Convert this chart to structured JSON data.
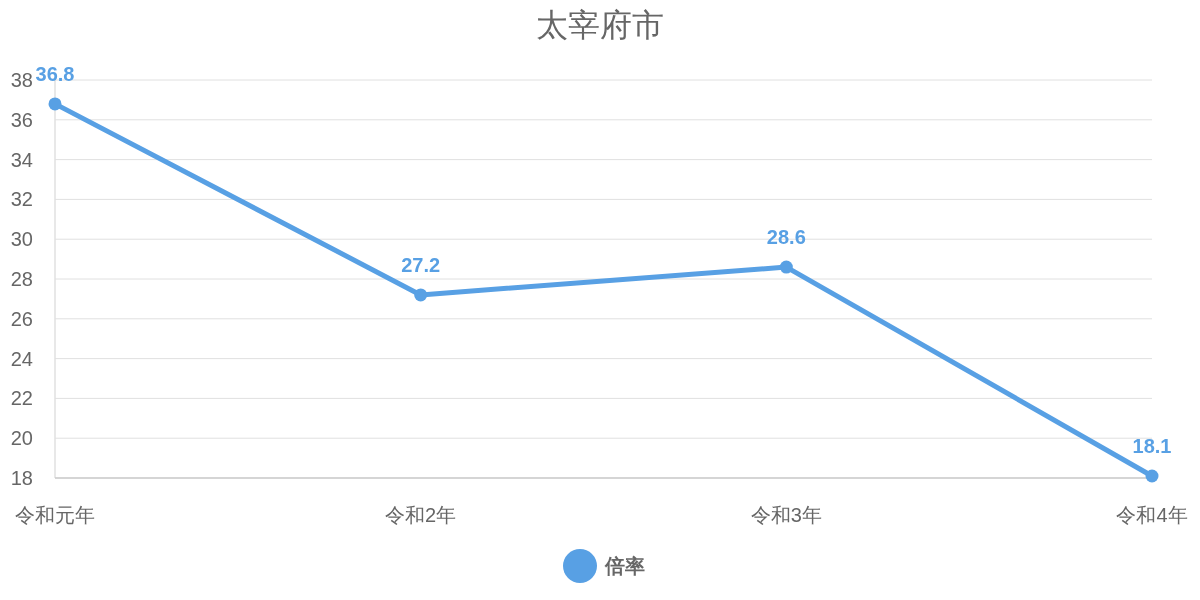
{
  "chart_data": {
    "type": "line",
    "title": "太宰府市",
    "categories": [
      "令和元年",
      "令和2年",
      "令和3年",
      "令和4年"
    ],
    "series": [
      {
        "name": "倍率",
        "color": "#58a0e4",
        "values": [
          36.8,
          27.2,
          28.6,
          18.1
        ]
      }
    ],
    "ylim": [
      18,
      38
    ],
    "yticks": [
      18,
      20,
      22,
      24,
      26,
      28,
      30,
      32,
      34,
      36,
      38
    ],
    "grid": "y",
    "legend": "bottom",
    "marker": "circle",
    "line_style": "solid",
    "data_labels": true
  }
}
